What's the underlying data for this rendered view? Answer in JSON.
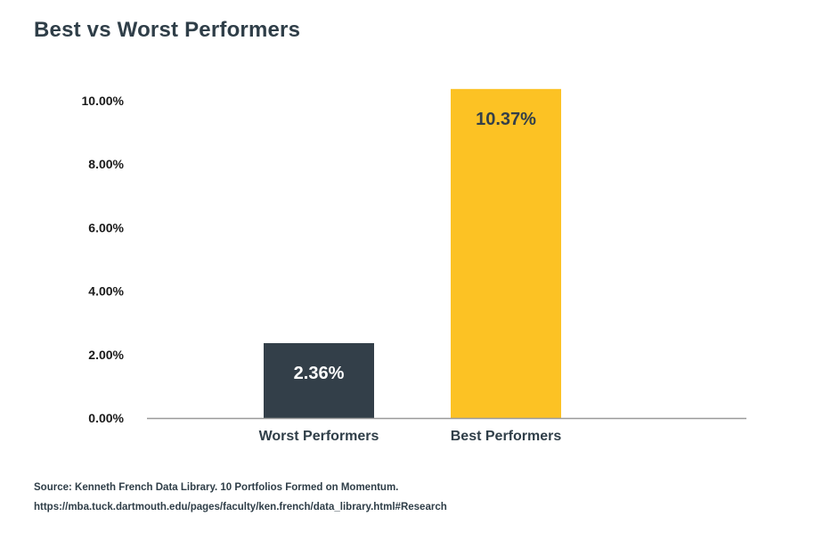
{
  "chart_data": {
    "type": "bar",
    "title": "Best vs Worst Performers",
    "categories": [
      "Worst Performers",
      "Best Performers"
    ],
    "values": [
      2.36,
      10.37
    ],
    "value_labels": [
      "2.36%",
      "10.37%"
    ],
    "colors": [
      "#333f49",
      "#fcc224"
    ],
    "label_colors": [
      "#ffffff",
      "#333f49"
    ],
    "ylim": [
      0,
      10
    ],
    "yticks": [
      0,
      2,
      4,
      6,
      8,
      10
    ],
    "ytick_labels": [
      "0.00%",
      "2.00%",
      "4.00%",
      "6.00%",
      "8.00%",
      "10.00%"
    ],
    "xlabel": "",
    "ylabel": "",
    "grid": false
  },
  "source": {
    "line1": "Source: Kenneth French Data Library. 10 Portfolios Formed on Momentum.",
    "line2": "https://mba.tuck.dartmouth.edu/pages/faculty/ken.french/data_library.html#Research"
  }
}
